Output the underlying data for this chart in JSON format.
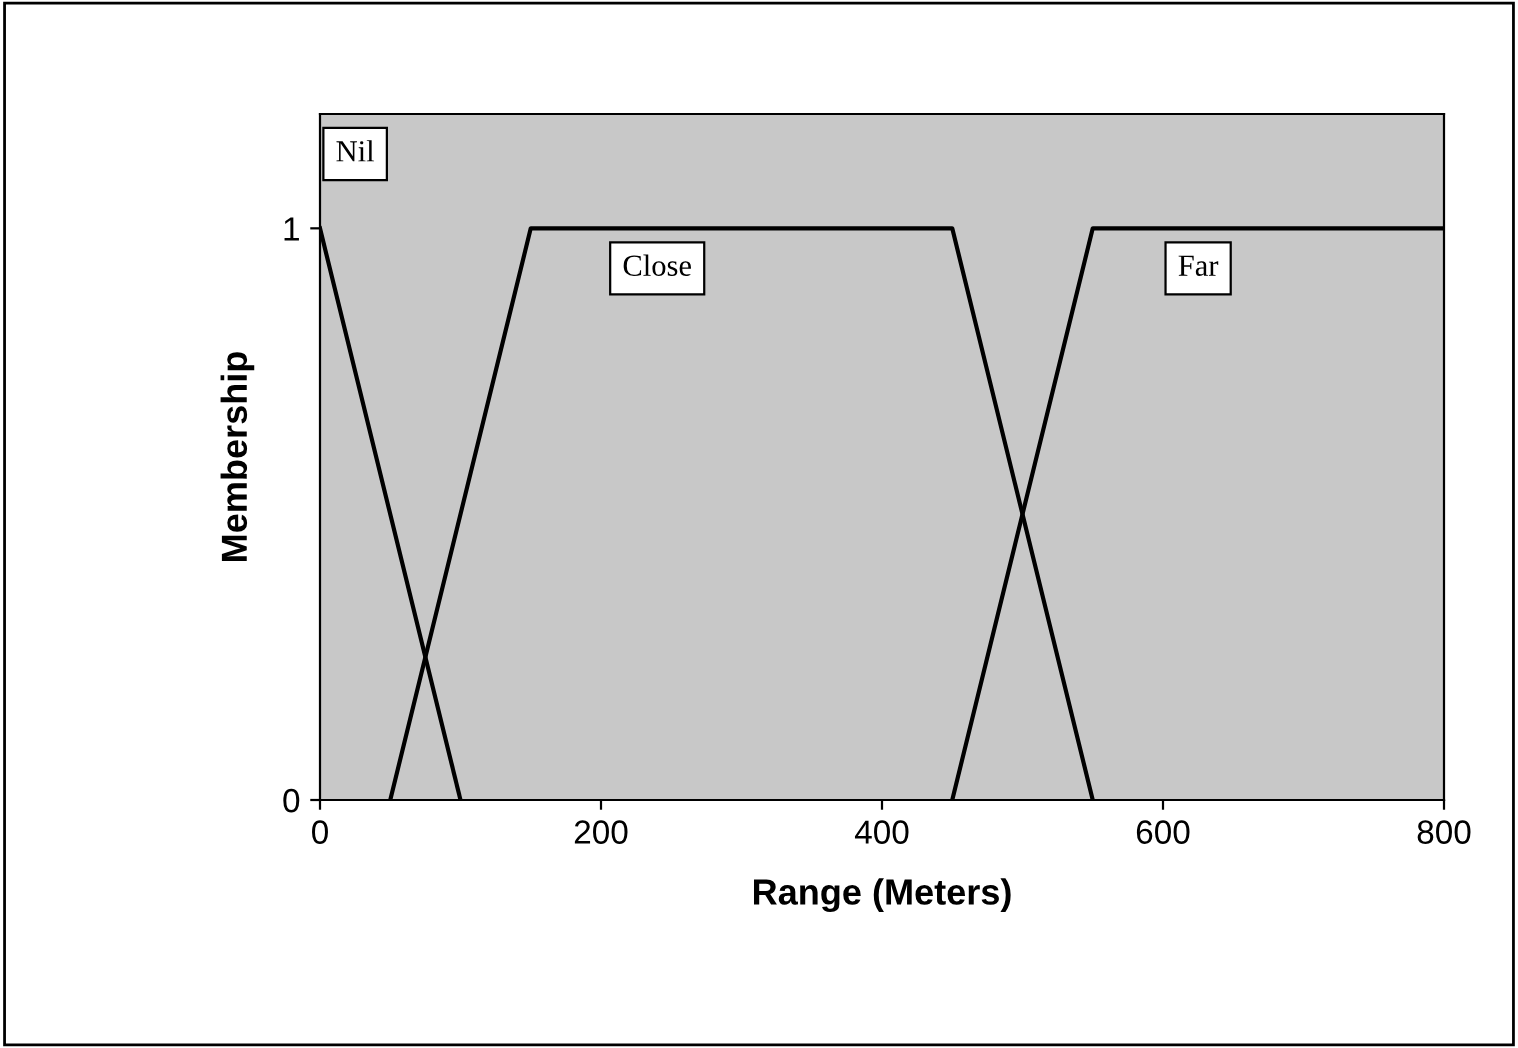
{
  "chart_data": {
    "type": "line",
    "xlabel": "Range (Meters)",
    "ylabel": "Membership",
    "series": [
      {
        "name": "Nil",
        "color": "#000000",
        "x": [
          0,
          100
        ],
        "values": [
          1,
          0
        ]
      },
      {
        "name": "Close",
        "color": "#000000",
        "x": [
          50,
          150,
          450,
          550
        ],
        "values": [
          0,
          1,
          1,
          0
        ]
      },
      {
        "name": "Far",
        "color": "#000000",
        "x": [
          450,
          550,
          800
        ],
        "values": [
          0,
          1,
          1
        ]
      }
    ],
    "xlim": [
      0,
      800
    ],
    "ylim": [
      0,
      1.2
    ],
    "xticks": [
      0,
      200,
      400,
      600,
      800
    ],
    "yticks": [
      0,
      1
    ],
    "grid": false,
    "legend": false,
    "marker": "none",
    "line_style": "solid"
  }
}
